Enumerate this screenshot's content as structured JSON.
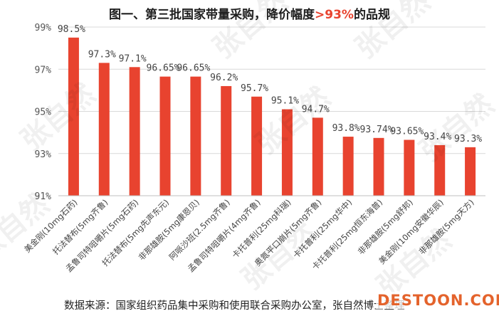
{
  "title": {
    "main": "图一、第三批国家带量采购，降价幅度",
    "highlight": ">93%",
    "suffix": "的品规"
  },
  "colors": {
    "bar": "#e8432f",
    "grid": "#d9d9d9",
    "highlight": "#e8432f"
  },
  "watermark": "张自然",
  "source": "数据来源：国家组织药品集中采购和使用联合采购办公室，张自然博士整理",
  "brand": "DESTOON.COM",
  "chart_data": {
    "type": "bar",
    "title": "图一、第三批国家带量采购，降价幅度>93%的品规",
    "ylim": [
      91,
      99
    ],
    "yticks": [
      91,
      93,
      95,
      97,
      99
    ],
    "ytick_labels": [
      "91%",
      "93%",
      "95%",
      "97%",
      "99%"
    ],
    "grid": true,
    "categories": [
      "美金刚(10mg石药)",
      "托法替布(5mg齐鲁)",
      "孟鲁司特咀嚼片(5mg石药)",
      "托法替布(5mg先声东元)",
      "非那雄胺(5mg康恩贝)",
      "阿哌沙班(2.5mg齐鲁)",
      "孟鲁司特咀嚼片(4mg齐鲁)",
      "卡托普利(25mg科瑞)",
      "奥氮平口崩片(5mg齐鲁)",
      "卡托普利(25mg华中)",
      "卡托普利(25mg恒东海普)",
      "非那雄胺(5mg舒邦)",
      "美金刚(10mg安徽华辰)",
      "非那雄胺(5mg天方)"
    ],
    "values": [
      98.5,
      97.3,
      97.1,
      96.65,
      96.65,
      96.2,
      95.7,
      95.1,
      94.7,
      93.8,
      93.74,
      93.65,
      93.4,
      93.3
    ],
    "value_labels": [
      "98.5%",
      "97.3%",
      "97.1%",
      "96.65%",
      "96.65%",
      "96.2%",
      "95.7%",
      "95.1%",
      "94.7%",
      "93.8%",
      "93.74%",
      "93.65%",
      "93.4%",
      "93.3%"
    ]
  }
}
